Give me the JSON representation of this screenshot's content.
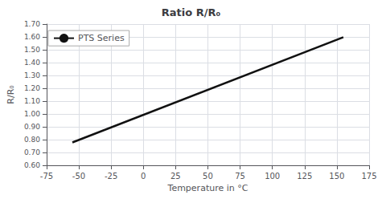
{
  "chart_data": {
    "type": "line",
    "title": "Ratio R/R₀",
    "x_label": "Temperature in °C",
    "y_label": "R/R₀",
    "series": [
      {
        "name": "PTS Series",
        "color": "#111111",
        "x": [
          -55,
          155
        ],
        "values": [
          0.778,
          1.598
        ]
      }
    ],
    "xlim": [
      -75,
      175
    ],
    "xticks": [
      -75,
      -50,
      -25,
      0,
      25,
      50,
      75,
      100,
      125,
      150,
      175
    ],
    "ylim": [
      0.6,
      1.7
    ],
    "yticks": [
      {
        "value": 0.6,
        "label": "0.60"
      },
      {
        "value": 0.7,
        "label": "0.70"
      },
      {
        "value": 0.8,
        "label": "0.80"
      },
      {
        "value": 0.9,
        "label": "0.90"
      },
      {
        "value": 1.0,
        "label": "1.00"
      },
      {
        "value": 1.1,
        "label": "1.10"
      },
      {
        "value": 1.2,
        "label": "1.20"
      },
      {
        "value": 1.3,
        "label": "1.30"
      },
      {
        "value": 1.4,
        "label": "1.40"
      },
      {
        "value": 1.5,
        "label": "1.50"
      },
      {
        "value": 1.6,
        "label": "1.60"
      },
      {
        "value": 1.7,
        "label": "1.70"
      }
    ],
    "grid": true,
    "legend": "upper left"
  }
}
